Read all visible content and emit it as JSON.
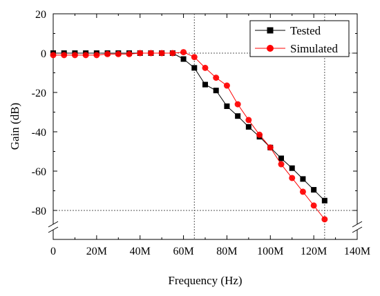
{
  "chart_data": {
    "type": "line",
    "xlabel": "Frequency (Hz)",
    "ylabel": "Gain (dB)",
    "xlim": [
      0,
      140
    ],
    "ylim": [
      -95,
      20
    ],
    "x_ticks": [
      {
        "value": 0,
        "label": "0"
      },
      {
        "value": 20,
        "label": "20M"
      },
      {
        "value": 40,
        "label": "40M"
      },
      {
        "value": 60,
        "label": "60M"
      },
      {
        "value": 80,
        "label": "80M"
      },
      {
        "value": 100,
        "label": "100M"
      },
      {
        "value": 120,
        "label": "120M"
      },
      {
        "value": 140,
        "label": "140M"
      }
    ],
    "y_ticks": [
      {
        "value": 20,
        "label": "20"
      },
      {
        "value": 0,
        "label": "0"
      },
      {
        "value": -20,
        "label": "-20"
      },
      {
        "value": -40,
        "label": "-40"
      },
      {
        "value": -60,
        "label": "-60"
      },
      {
        "value": -80,
        "label": "-80"
      }
    ],
    "y_axis_break": "between -80 and the bottom of the axis",
    "reference_lines": {
      "vertical_x": [
        65,
        125
      ],
      "horizontal_y": [
        0,
        -80
      ],
      "style": "dotted"
    },
    "legend_position": "top-right",
    "series": [
      {
        "name": "Tested",
        "color": "#000000",
        "marker": "square",
        "x": [
          0,
          5,
          10,
          15,
          20,
          25,
          30,
          35,
          40,
          45,
          50,
          55,
          60,
          65,
          70,
          75,
          80,
          85,
          90,
          95,
          100,
          105,
          110,
          115,
          120,
          125
        ],
        "y": [
          0,
          0,
          0,
          0,
          0,
          0,
          0,
          0,
          0,
          0,
          0,
          0,
          -3,
          -7.5,
          -16,
          -19,
          -27,
          -32,
          -37.5,
          -42.5,
          -48,
          -53.5,
          -58.5,
          -64,
          -69.5,
          -75
        ]
      },
      {
        "name": "Simulated",
        "color": "#ff0000",
        "marker": "circle",
        "x": [
          0,
          5,
          10,
          15,
          20,
          25,
          30,
          35,
          40,
          45,
          50,
          55,
          60,
          65,
          70,
          75,
          80,
          85,
          90,
          95,
          100,
          105,
          110,
          115,
          120,
          125
        ],
        "y": [
          -1,
          -1,
          -1,
          -1,
          -1,
          -0.5,
          -0.5,
          -0.5,
          0,
          0,
          0,
          0,
          0.5,
          -2,
          -7.5,
          -12.5,
          -16.5,
          -26,
          -34,
          -41.5,
          -48,
          -56.5,
          -63.5,
          -70.5,
          -77.5,
          -84.5
        ]
      }
    ]
  }
}
